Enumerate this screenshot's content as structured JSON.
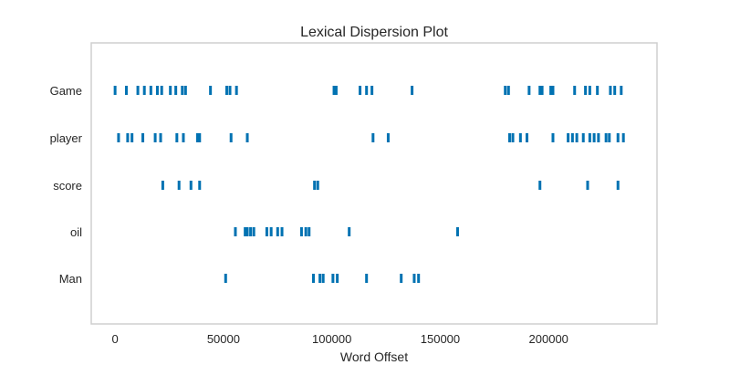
{
  "chart_data": {
    "type": "scatter",
    "title": "Lexical Dispersion Plot",
    "xlabel": "Word Offset",
    "ylabel": "",
    "categories": [
      "Game",
      "player",
      "score",
      "oil",
      "Man"
    ],
    "xlim": [
      -11000,
      250000
    ],
    "x_ticks": [
      0,
      50000,
      100000,
      150000,
      200000
    ],
    "x_tick_labels": [
      "0",
      "50000",
      "100000",
      "150000",
      "200000"
    ],
    "grid": false,
    "marker_color": "#0072b2",
    "series": [
      {
        "name": "Game",
        "x": [
          0,
          5200,
          10500,
          13500,
          16500,
          19500,
          21500,
          25500,
          28000,
          31000,
          32500,
          44000,
          51500,
          53000,
          56000,
          101000,
          102000,
          113000,
          116000,
          118500,
          137000,
          180000,
          181500,
          191000,
          196000,
          197000,
          201000,
          202000,
          212000,
          217000,
          219000,
          222500,
          228500,
          230500,
          233500
        ]
      },
      {
        "name": "player",
        "x": [
          1600,
          5800,
          7800,
          12800,
          18500,
          21000,
          28500,
          31500,
          38000,
          39000,
          53500,
          61000,
          119000,
          126000,
          182000,
          183500,
          187000,
          190000,
          202000,
          209000,
          211000,
          213000,
          216000,
          219000,
          221000,
          223000,
          226500,
          228000,
          232000,
          234500
        ]
      },
      {
        "name": "score",
        "x": [
          22000,
          29500,
          35000,
          39000,
          92000,
          93500,
          196000,
          218000,
          232000
        ]
      },
      {
        "name": "oil",
        "x": [
          55500,
          60000,
          61000,
          62500,
          64000,
          70000,
          72000,
          75000,
          77000,
          86000,
          88000,
          89500,
          108000,
          158000
        ]
      },
      {
        "name": "Man",
        "x": [
          51000,
          91500,
          94500,
          96000,
          100500,
          102500,
          116000,
          132000,
          138000,
          140000
        ]
      }
    ]
  }
}
